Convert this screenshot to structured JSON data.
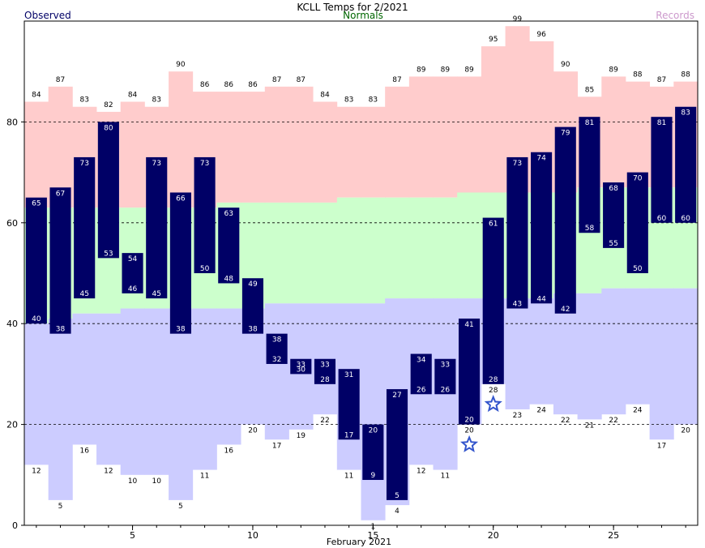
{
  "chart_data": {
    "type": "bar",
    "title": "KCLL Temps for 2/2021",
    "legend": {
      "observed": "Observed",
      "normals": "Normals",
      "records": "Records",
      "placement": "top"
    },
    "xlabel": "February 2021",
    "ylim": [
      0,
      100
    ],
    "xlim": [
      0.5,
      28.5
    ],
    "y_ticks": [
      "0",
      "20",
      "40",
      "60",
      "80"
    ],
    "x_ticks": [
      {
        "day": 5,
        "label": "5"
      },
      {
        "day": 10,
        "label": "10"
      },
      {
        "day": 15,
        "label": "15"
      },
      {
        "day": 20,
        "label": "20"
      },
      {
        "day": 25,
        "label": "25"
      }
    ],
    "gridlines": [
      20,
      40,
      60,
      80
    ],
    "days": [
      1,
      2,
      3,
      4,
      5,
      6,
      7,
      8,
      9,
      10,
      11,
      12,
      13,
      14,
      15,
      16,
      17,
      18,
      19,
      20,
      21,
      22,
      23,
      24,
      25,
      26,
      27,
      28
    ],
    "record_high": [
      84,
      87,
      83,
      82,
      84,
      83,
      90,
      86,
      86,
      86,
      87,
      87,
      84,
      83,
      83,
      87,
      89,
      89,
      89,
      95,
      99,
      96,
      90,
      85,
      89,
      88,
      87,
      88
    ],
    "record_low": [
      12,
      5,
      16,
      12,
      10,
      10,
      5,
      11,
      16,
      20,
      17,
      19,
      22,
      11,
      1,
      4,
      12,
      11,
      20,
      28,
      23,
      24,
      22,
      21,
      22,
      24,
      17,
      20
    ],
    "normal_high": [
      63,
      63,
      63,
      63,
      63,
      63,
      63,
      63,
      64,
      64,
      64,
      64,
      64,
      65,
      65,
      65,
      65,
      65,
      66,
      66,
      66,
      66,
      66,
      67,
      67,
      67,
      67,
      67
    ],
    "normal_low": [
      40,
      41,
      42,
      42,
      43,
      43,
      43,
      43,
      43,
      43,
      44,
      44,
      44,
      44,
      44,
      45,
      45,
      45,
      45,
      45,
      45,
      45,
      46,
      46,
      47,
      47,
      47,
      47
    ],
    "observed_high": [
      65,
      67,
      73,
      80,
      54,
      73,
      66,
      73,
      63,
      49,
      38,
      33,
      33,
      31,
      20,
      27,
      34,
      33,
      41,
      61,
      73,
      74,
      79,
      81,
      68,
      70,
      81,
      83
    ],
    "observed_low": [
      40,
      38,
      45,
      53,
      46,
      45,
      38,
      50,
      48,
      38,
      32,
      30,
      28,
      17,
      9,
      5,
      26,
      26,
      20,
      28,
      43,
      44,
      42,
      58,
      55,
      50,
      60,
      60
    ],
    "record_markers": [
      {
        "day": 19,
        "value": 16
      },
      {
        "day": 20,
        "value": 24
      }
    ],
    "colors": {
      "record_band": "#ffcccc",
      "normal_band": "#ccffcc",
      "below_normal_band": "#ccccff",
      "observed_bar": "#000066",
      "observed_text": "#000066",
      "normals_text": "#006600",
      "records_text": "#cc99cc",
      "star": "#3355cc"
    }
  }
}
